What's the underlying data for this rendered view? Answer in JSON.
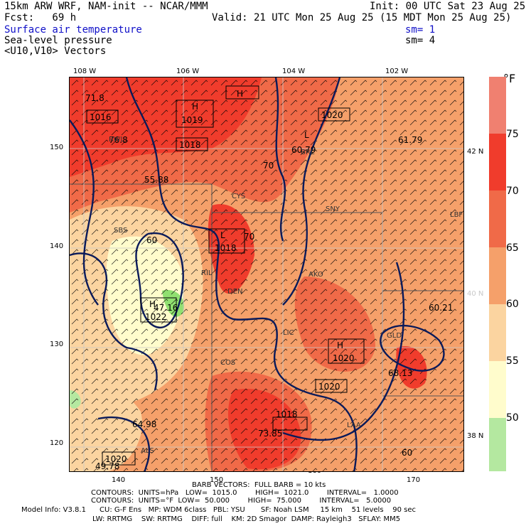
{
  "header": {
    "line1_left": "15km ARW WRF, NAM-init -- NCAR/MMM",
    "line1_right": "Init: 00 UTC Sat 23 Aug 25",
    "line2_left": "Fcst:   69 h",
    "line2_right": "Valid: 21 UTC Mon 25 Aug 25 (15 MDT Mon 25 Aug 25)",
    "field1": "Surface air temperature",
    "field1_sm": "sm= 1",
    "field2": "Sea-level pressure",
    "field2_sm": "sm= 4",
    "field3": "<U10,V10> Vectors"
  },
  "axes": {
    "top_lon": [
      "108 W",
      "106 W",
      "104 W",
      "102 W"
    ],
    "left_y": [
      "150",
      "140",
      "130",
      "120"
    ],
    "bottom_x": [
      "140",
      "150",
      "160",
      "170"
    ],
    "right_lat": [
      "42 N",
      "40 N",
      "38 N"
    ]
  },
  "colorbar": {
    "unit": "°F",
    "labels": [
      "75",
      "70",
      "65",
      "60",
      "55",
      "50"
    ],
    "colors": [
      "#f08070",
      "#f03c2c",
      "#f06a48",
      "#f5a06a",
      "#fbd4a0",
      "#fffccc",
      "#b4e8a0",
      "#90e070"
    ]
  },
  "map_labels": {
    "highs": [
      {
        "letter": "H",
        "value": "1019"
      },
      {
        "letter": "H",
        "value": "1018"
      },
      {
        "letter": "H",
        "value": "1020"
      },
      {
        "letter": "H",
        "value": "1022"
      },
      {
        "letter": "H",
        "value": "1018"
      },
      {
        "letter": "H",
        "value": "1020"
      }
    ],
    "lows": [
      {
        "letter": "L",
        "value": "1018"
      },
      {
        "letter": "L",
        "value": "1020"
      }
    ],
    "boxed_contours": [
      "1016",
      "1020",
      "1018",
      "1020"
    ],
    "temps": [
      "71.8",
      "76.8",
      "55.88",
      "60.79",
      "61.79",
      "70",
      "47.16",
      "60.21",
      "68.13",
      "73.85",
      "64.98",
      "49.78",
      "70",
      "60",
      "60"
    ],
    "stations": [
      "RWL",
      "SBS",
      "CYS",
      "SNY",
      "BRL",
      "AKO",
      "DEN",
      "COS",
      "GLD",
      "ALS",
      "LAA",
      "LIC",
      "LBF",
      "RIL"
    ]
  },
  "footer": {
    "barb": "BARB VECTORS:  FULL BARB = 10 kts",
    "contours1": "CONTOURS:  UNITS=hPa   LOW=  1015.0        HIGH=  1021.0        INTERVAL=   1.0000",
    "contours2": "CONTOURS:  UNITS=°F  LOW=  50.000        HIGH=  75.000        INTERVAL=   5.0000",
    "model1": "Model Info: V3.8.1      CU: G-F Ens   MP: WDM 6class   PBL: YSU       SF: Noah LSM     15 km    51 levels    90 sec",
    "model2": "LW: RRTMG    SW: RRTMG    DIFF: full    KM: 2D Smagor  DAMP: Rayleigh3   SFLAY: MM5"
  }
}
